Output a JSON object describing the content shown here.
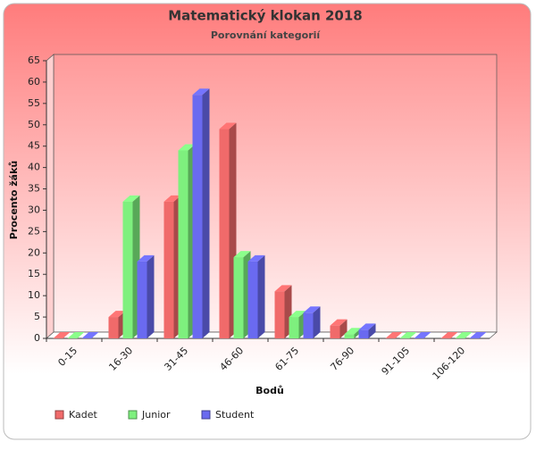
{
  "chart_data": {
    "type": "bar3d",
    "title": "Matematický klokan 2018",
    "subtitle": "Porovnání kategorií",
    "x_label": "Bodů",
    "y_label": "Procento žáků",
    "categories": [
      "0-15",
      "16-30",
      "31-45",
      "46-60",
      "61-75",
      "76-90",
      "91-105",
      "106-120"
    ],
    "series": [
      {
        "name": "Kadet",
        "color": "#f06a6a",
        "values": [
          0,
          5,
          32,
          49,
          11,
          3,
          0,
          0
        ]
      },
      {
        "name": "Junior",
        "color": "#7ef07e",
        "values": [
          0,
          32,
          44,
          19,
          5,
          1,
          0,
          0
        ]
      },
      {
        "name": "Student",
        "color": "#6a6af0",
        "values": [
          0,
          18,
          57,
          18,
          6,
          2,
          0,
          0
        ]
      }
    ],
    "ylim": [
      0,
      65
    ],
    "yticks": [
      0,
      5,
      10,
      15,
      20,
      25,
      30,
      35,
      40,
      45,
      50,
      55,
      60,
      65
    ],
    "grid": false,
    "legend": "bottom-left"
  }
}
